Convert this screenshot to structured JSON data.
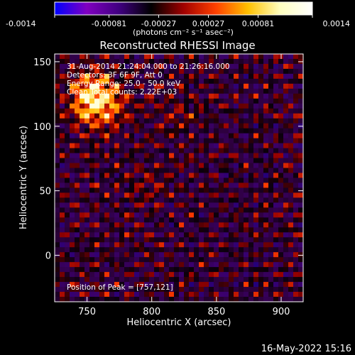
{
  "colorbar": {
    "ticks": [
      "-0.0014",
      "-0.00081",
      "-0.00027",
      "0.00027",
      "0.00081",
      "0.0014"
    ],
    "tick_values": [
      -0.0014,
      -0.00081,
      -0.00027,
      0.00027,
      0.00081,
      0.0014
    ],
    "range": [
      -0.0014,
      0.0014
    ],
    "unit_label": "(photons cm⁻² s⁻¹ asec⁻²)",
    "colormap": [
      "#0000ff",
      "#8000c0",
      "#400080",
      "#000000",
      "#a00000",
      "#ff4000",
      "#ffc000",
      "#ffffc0",
      "#ffffff"
    ]
  },
  "chart_data": {
    "type": "heatmap",
    "title": "Reconstructed RHESSI Image",
    "xlabel": "Heliocentric X (arcsec)",
    "ylabel": "Heliocentric Y (arcsec)",
    "x_ticks": [
      "750",
      "800",
      "850",
      "900"
    ],
    "x_tick_values": [
      750,
      800,
      850,
      900
    ],
    "y_ticks": [
      "0",
      "50",
      "100",
      "150"
    ],
    "y_tick_values": [
      0,
      50,
      100,
      150
    ],
    "xlim": [
      725,
      917
    ],
    "ylim": [
      -36,
      156
    ],
    "peak_position": [
      757,
      121
    ],
    "annotations": {
      "time_range": "31-Aug-2014 21:24:04.000 to 21:26:16.000",
      "detectors": "Detectors: 3F 6F 9F, Att 0",
      "energy": "Energy Range: 25.0 - 50.0 keV",
      "algorithm": "Clean    Total counts: 2.22E+03",
      "peak": "Position of Peak = [757,121]"
    }
  },
  "footer": {
    "date": "16-May-2022 15:16"
  }
}
